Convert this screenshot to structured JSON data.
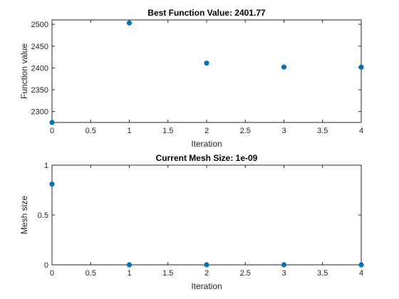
{
  "chart_data": [
    {
      "type": "scatter",
      "title": "Best Function Value: 2401.77",
      "xlabel": "Iteration",
      "ylabel": "Function value",
      "xlim": [
        0,
        4
      ],
      "ylim": [
        2275,
        2510
      ],
      "xticks": [
        "0",
        "0.5",
        "1",
        "1.5",
        "2",
        "2.5",
        "3",
        "3.5",
        "4"
      ],
      "yticks": [
        "2300",
        "2350",
        "2400",
        "2450",
        "2500"
      ],
      "grid": true,
      "marker_color": "#0072bd",
      "x": [
        0,
        1,
        2,
        3,
        4
      ],
      "y": [
        2275,
        2503,
        2411,
        2402,
        2401.77
      ]
    },
    {
      "type": "scatter",
      "title": "Current Mesh Size: 1e-09",
      "xlabel": "Iteration",
      "ylabel": "Mesh size",
      "xlim": [
        0,
        4
      ],
      "ylim": [
        0,
        1
      ],
      "xticks": [
        "0",
        "0.5",
        "1",
        "1.5",
        "2",
        "2.5",
        "3",
        "3.5",
        "4"
      ],
      "yticks": [
        "0",
        "0.5",
        "1"
      ],
      "grid": true,
      "marker_color": "#0072bd",
      "x": [
        0,
        1,
        2,
        3,
        4
      ],
      "y": [
        0.81,
        0,
        0,
        0,
        0
      ]
    }
  ]
}
